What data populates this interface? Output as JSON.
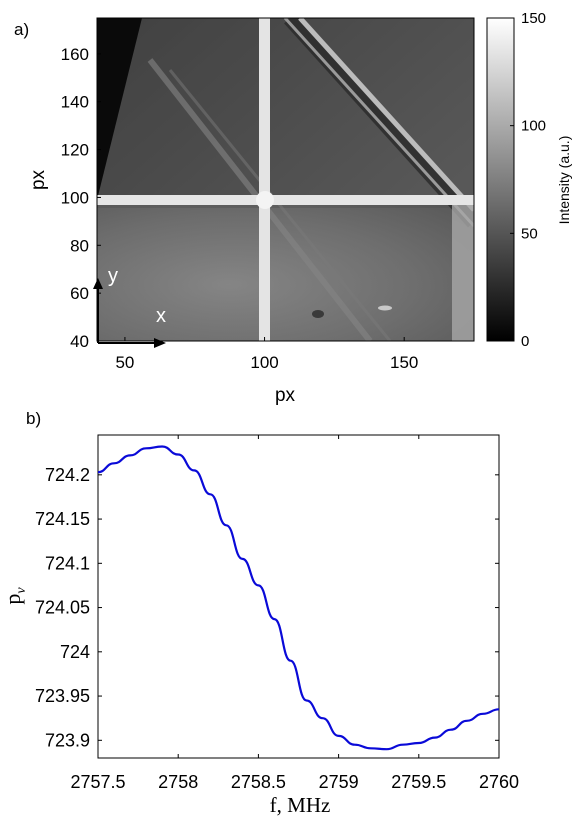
{
  "chart_data": [
    {
      "panel_label": "a)",
      "type": "heatmap",
      "xlabel": "px",
      "ylabel": "px",
      "xlim": [
        40,
        175
      ],
      "ylim": [
        40,
        175
      ],
      "x_ticks": [
        50,
        100,
        150
      ],
      "y_ticks": [
        40,
        60,
        80,
        100,
        120,
        140,
        160
      ],
      "colorbar": {
        "label": "Intensity (a.u.)",
        "range": [
          0,
          150
        ],
        "ticks": [
          0,
          50,
          100,
          150
        ],
        "colormap": "gray"
      },
      "image_description": "grayscale microscope intensity map with a bright cross and diagonal stripes",
      "axis_arrows": {
        "x_label": "x",
        "y_label": "y"
      },
      "features": {
        "vertical_line_x": 101,
        "horizontal_line_y": 99
      }
    },
    {
      "panel_label": "b)",
      "type": "line",
      "xlabel": "f, MHz",
      "ylabel": "p",
      "ylabel_sub": "v",
      "xlim": [
        2757.5,
        2760
      ],
      "ylim": [
        723.88,
        724.245
      ],
      "x_ticks": [
        2757.5,
        2758,
        2758.5,
        2759,
        2759.5,
        2760
      ],
      "x_tick_labels": [
        "2757.5",
        "2758",
        "2758.5",
        "2759",
        "2759.5",
        "2760"
      ],
      "y_ticks": [
        723.9,
        723.95,
        724,
        724.05,
        724.1,
        724.15,
        724.2
      ],
      "y_tick_labels": [
        "723.9",
        "723.95",
        "724",
        "724.05",
        "724.1",
        "724.15",
        "724.2"
      ],
      "line_color": "#0a0ad8",
      "series": [
        {
          "x": [
            2757.5,
            2757.6,
            2757.7,
            2757.8,
            2757.9,
            2758.0,
            2758.1,
            2758.2,
            2758.3,
            2758.4,
            2758.5,
            2758.6,
            2758.7,
            2758.8,
            2758.9,
            2759.0,
            2759.1,
            2759.2,
            2759.3,
            2759.4,
            2759.5,
            2759.6,
            2759.7,
            2759.8,
            2759.9,
            2760.0
          ],
          "y": [
            724.203,
            724.213,
            724.222,
            724.23,
            724.232,
            724.223,
            724.205,
            724.178,
            724.143,
            724.105,
            724.075,
            724.037,
            723.99,
            723.945,
            723.925,
            723.905,
            723.895,
            723.891,
            723.89,
            723.895,
            723.897,
            723.903,
            723.912,
            723.922,
            723.93,
            723.935
          ]
        }
      ]
    }
  ]
}
